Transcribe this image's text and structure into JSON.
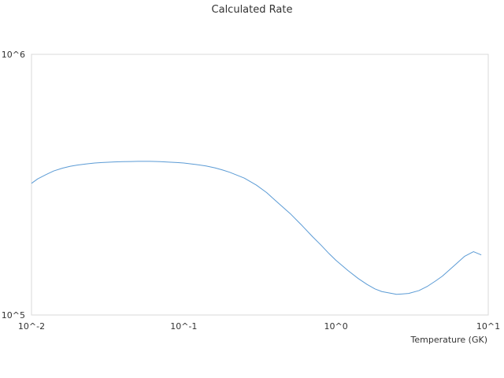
{
  "chart_data": {
    "type": "line",
    "title": "Calculated Rate",
    "xlabel": "Temperature (GK)",
    "ylabel": "",
    "x_scale": "log",
    "y_scale": "log",
    "xlim": [
      0.01,
      10
    ],
    "ylim": [
      100000,
      1000000
    ],
    "x_ticks": [
      {
        "value": 0.01,
        "label": "10^-2"
      },
      {
        "value": 0.1,
        "label": "10^-1"
      },
      {
        "value": 1,
        "label": "10^0"
      },
      {
        "value": 10,
        "label": "10^1"
      }
    ],
    "y_ticks": [
      {
        "value": 100000,
        "label": "10^5"
      },
      {
        "value": 1000000,
        "label": "10^6"
      }
    ],
    "grid": false,
    "legend": "none",
    "series": [
      {
        "color": "#5b9bd5",
        "x": [
          0.01,
          0.011,
          0.0125,
          0.014,
          0.016,
          0.018,
          0.02,
          0.023,
          0.026,
          0.03,
          0.035,
          0.04,
          0.045,
          0.05,
          0.06,
          0.07,
          0.08,
          0.09,
          0.1,
          0.12,
          0.14,
          0.16,
          0.18,
          0.2,
          0.25,
          0.3,
          0.35,
          0.4,
          0.5,
          0.6,
          0.7,
          0.8,
          0.9,
          1.0,
          1.2,
          1.4,
          1.6,
          1.8,
          2.0,
          2.5,
          3.0,
          3.5,
          4.0,
          4.5,
          5.0,
          6.0,
          7.0,
          8.0,
          9.0
        ],
        "y": [
          320000,
          333000,
          346000,
          357000,
          366000,
          372000,
          376000,
          380000,
          383000,
          385000,
          386500,
          387500,
          388000,
          388500,
          388500,
          387500,
          386000,
          384500,
          383000,
          378000,
          373000,
          367000,
          360000,
          353000,
          335000,
          315000,
          295000,
          275000,
          245000,
          220000,
          200000,
          185000,
          172000,
          162000,
          148000,
          138000,
          131000,
          126000,
          123000,
          120000,
          121000,
          124000,
          129000,
          135000,
          141000,
          155000,
          168000,
          175000,
          170000
        ]
      }
    ]
  }
}
